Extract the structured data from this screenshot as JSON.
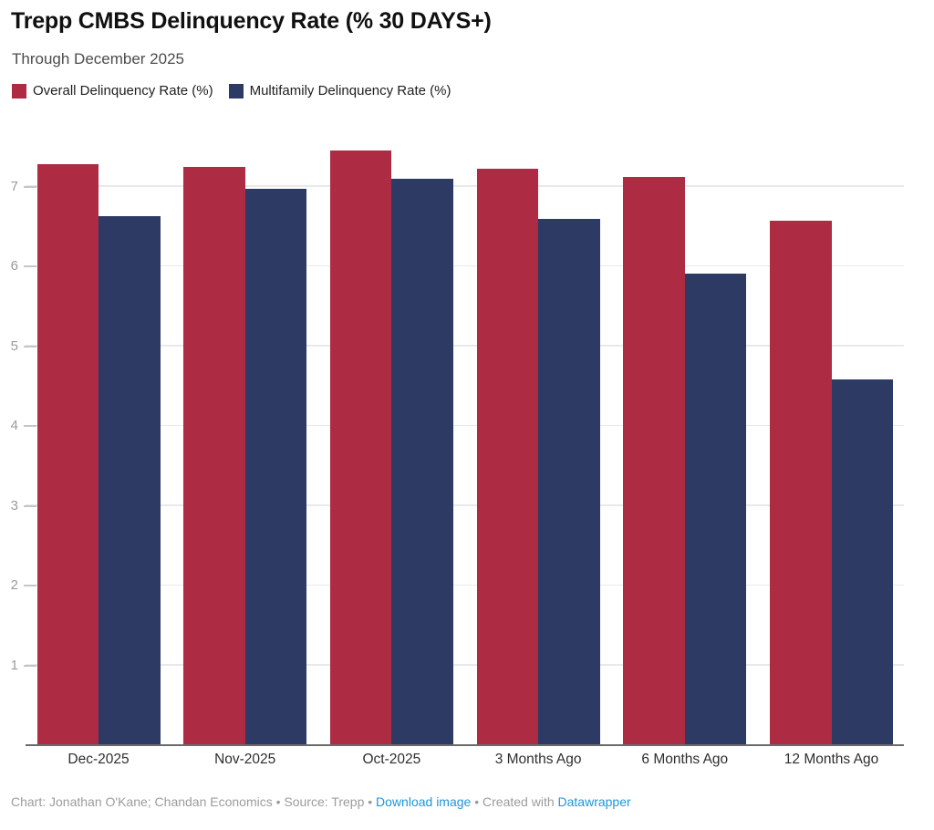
{
  "header": {
    "title": "Trepp CMBS Delinquency Rate (% 30 DAYS+)",
    "subtitle": "Through December 2025"
  },
  "legend": {
    "items": [
      {
        "id": "overall",
        "label": "Overall Delinquency Rate (%)",
        "color": "#ad2c44"
      },
      {
        "id": "multifamily",
        "label": "Multifamily Delinquency Rate (%)",
        "color": "#2d3a64"
      }
    ]
  },
  "chart_data": {
    "type": "bar",
    "title": "Trepp CMBS Delinquency Rate (% 30 DAYS+)",
    "subtitle": "Through December 2025",
    "categories": [
      "Dec-2025",
      "Nov-2025",
      "Oct-2025",
      "3 Months Ago",
      "6 Months Ago",
      "12 Months Ago"
    ],
    "series": [
      {
        "name": "Overall Delinquency Rate (%)",
        "color": "#ad2c44",
        "values": [
          7.28,
          7.25,
          7.45,
          7.22,
          7.12,
          6.57
        ]
      },
      {
        "name": "Multifamily Delinquency Rate (%)",
        "color": "#2d3a64",
        "values": [
          6.63,
          6.97,
          7.1,
          6.59,
          5.91,
          4.58
        ]
      }
    ],
    "xlabel": "",
    "ylabel": "",
    "yticks": [
      1,
      2,
      3,
      4,
      5,
      6,
      7
    ],
    "ylim": [
      0,
      7.74
    ],
    "grid": "horizontal",
    "legend_position": "top-left",
    "grid_color": "#e9e9e9",
    "axis_line_color": "#6b6b6b"
  },
  "footer": {
    "credit": "Chart: Jonathan O'Kane; Chandan Economics",
    "separator": " • ",
    "source": "Source: Trepp",
    "download_label": "Download image",
    "created_with": "Created with ",
    "datawrapper_label": "Datawrapper",
    "link_color": "#1e96d9"
  }
}
